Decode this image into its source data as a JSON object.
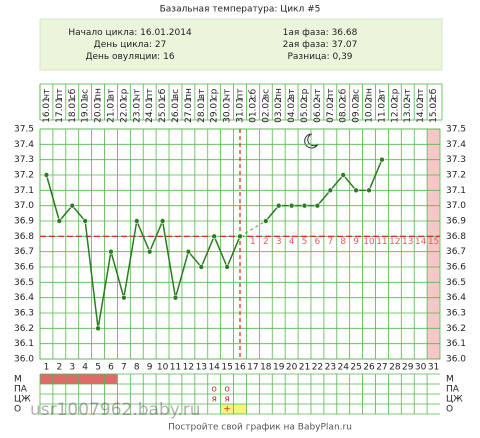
{
  "chart_data": {
    "type": "line",
    "title": "Базальная температура: Цикл #5",
    "categories": [
      1,
      2,
      3,
      4,
      5,
      6,
      7,
      8,
      9,
      10,
      11,
      12,
      13,
      14,
      15,
      16,
      17,
      18,
      19,
      20,
      21,
      22,
      23,
      24,
      25,
      26,
      27,
      28,
      29,
      30,
      31
    ],
    "weekdays": [
      "чт",
      "пт",
      "сб",
      "вс",
      "пн",
      "вт",
      "ср",
      "чт",
      "пт",
      "сб",
      "вс",
      "пн",
      "вт",
      "ср",
      "чт",
      "пт",
      "сб",
      "вс",
      "пн",
      "вт",
      "ср",
      "чт",
      "пт",
      "сб",
      "вс",
      "пн",
      "вт",
      "ср",
      "чт",
      "пт",
      "сб"
    ],
    "dates": [
      "16.01",
      "17.01",
      "18.01",
      "19.01",
      "20.01",
      "21.01",
      "22.01",
      "23.01",
      "24.01",
      "25.01",
      "26.01",
      "27.01",
      "28.01",
      "29.01",
      "30.01",
      "31.01",
      "01.02",
      "02.02",
      "03.02",
      "04.02",
      "05.02",
      "06.02",
      "07.02",
      "08.02",
      "09.02",
      "10.02",
      "11.02",
      "12.02",
      "13.02",
      "14.02",
      "15.02"
    ],
    "series": [
      {
        "name": "Температура",
        "color": "#2a7d1f",
        "values": [
          37.2,
          36.9,
          37.0,
          36.9,
          36.2,
          36.7,
          36.4,
          36.9,
          36.7,
          36.9,
          36.4,
          36.7,
          36.6,
          36.8,
          36.6,
          36.8,
          null,
          36.9,
          37.0,
          37.0,
          37.0,
          37.0,
          37.1,
          37.2,
          37.1,
          37.1,
          37.3,
          null,
          null,
          null,
          null
        ]
      }
    ],
    "cover_line": 36.8,
    "ylim": [
      36.0,
      37.5
    ],
    "yticks": [
      {
        "value": 36.0,
        "label": "36.0"
      },
      36.1,
      36.2,
      36.3,
      36.4,
      36.5,
      36.6,
      36.7,
      36.8,
      36.9,
      {
        "value": 37.0,
        "label": "37.0"
      },
      37.1,
      37.2,
      37.3,
      37.4,
      37.5
    ],
    "phase2_days": [
      1,
      2,
      3,
      4,
      5,
      6,
      7,
      8,
      9,
      10,
      11,
      12,
      13,
      14,
      15
    ],
    "grid": true
  },
  "info": {
    "left": [
      {
        "label": "Начало цикла:",
        "value": "16.01.2014"
      },
      {
        "label": "День цикла:",
        "value": 27
      },
      {
        "label": "День овуляции:",
        "value": 16
      }
    ],
    "right": [
      {
        "label": "1ая фаза:",
        "value": 36.68
      },
      {
        "label": "2ая фаза:",
        "value": 37.07
      },
      {
        "label": "Разница:",
        "value": "0,39"
      }
    ]
  },
  "rows": {
    "labels": [
      "М",
      "ПА",
      "ЦЖ",
      "О"
    ],
    "pa": [
      null,
      null,
      null,
      null,
      null,
      null,
      null,
      null,
      null,
      null,
      null,
      null,
      null,
      "о",
      "о",
      null,
      null,
      null,
      null,
      null,
      null,
      null,
      null,
      null,
      null,
      null,
      null,
      null,
      null,
      null,
      null
    ],
    "cm": [
      null,
      null,
      null,
      null,
      null,
      null,
      null,
      null,
      null,
      null,
      null,
      null,
      null,
      "я",
      "я",
      null,
      null,
      null,
      null,
      null,
      null,
      null,
      null,
      null,
      null,
      null,
      null,
      null,
      null,
      null,
      null
    ],
    "ov": [
      null,
      null,
      null,
      null,
      null,
      null,
      null,
      null,
      null,
      null,
      null,
      null,
      null,
      null,
      "+",
      null,
      null,
      null,
      null,
      null,
      null,
      null,
      null,
      null,
      null,
      null,
      null,
      null,
      null,
      null,
      null
    ]
  },
  "watermark": "usr1007962.baby.ru",
  "footer": "Постройте свой график на BabyPlan.ru"
}
